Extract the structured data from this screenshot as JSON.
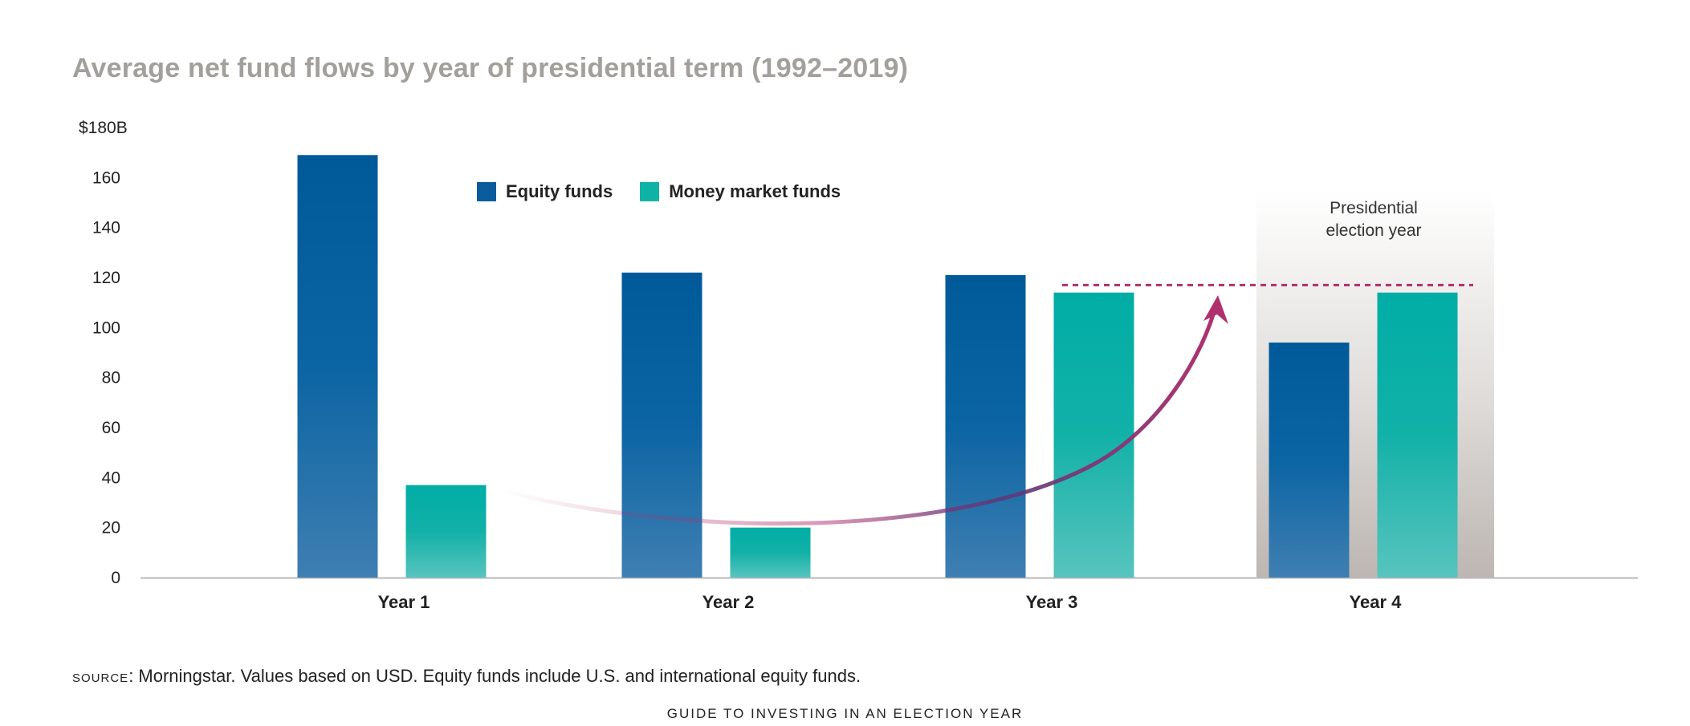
{
  "title": "Average net fund flows by year of presidential term (1992–2019)",
  "chart_data": {
    "type": "bar",
    "title": "Average net fund flows by year of presidential term (1992–2019)",
    "categories": [
      "Year 1",
      "Year 2",
      "Year 3",
      "Year 4"
    ],
    "series": [
      {
        "name": "Equity funds",
        "values": [
          169,
          122,
          121,
          94
        ],
        "color": "#0a5c9c"
      },
      {
        "name": "Money market funds",
        "values": [
          37,
          20,
          114,
          114
        ],
        "color": "#0fb3a6"
      }
    ],
    "ylim": [
      0,
      180
    ],
    "yticks": [
      0,
      20,
      40,
      60,
      80,
      100,
      120,
      140,
      160,
      180
    ],
    "ytick_labels": [
      "0",
      "20",
      "40",
      "60",
      "80",
      "100",
      "120",
      "140",
      "160",
      "$180B"
    ],
    "legend_position": "top-center",
    "highlight": {
      "category": "Year 4",
      "label_line1": "Presidential",
      "label_line2": "election year"
    },
    "reference_line_value": 117,
    "annotation_arrow_color": "#b0306e",
    "grid": false
  },
  "legend": {
    "equity_label": "Equity funds",
    "mm_label": "Money market funds",
    "equity_color": "#0a5c9c",
    "mm_color": "#0fb3a6"
  },
  "shade_label": {
    "line1": "Presidential",
    "line2": "election year"
  },
  "source": {
    "prefix": "SOURCE",
    "text": ": Morningstar. Values based on USD. Equity funds include U.S. and international equity funds."
  },
  "footer": "GUIDE TO INVESTING IN AN ELECTION YEAR"
}
